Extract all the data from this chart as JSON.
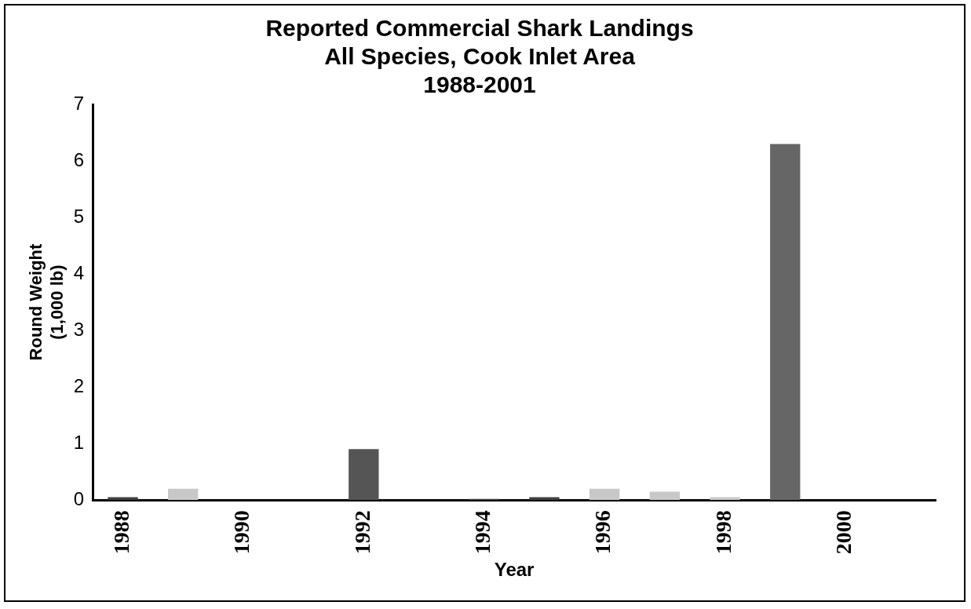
{
  "chart_data": {
    "type": "bar",
    "title": [
      "Reported Commercial Shark Landings",
      "All Species, Cook Inlet Area",
      "1988-2001"
    ],
    "xlabel": "Year",
    "ylabel": [
      "Round Weight",
      "(1,000 lb)"
    ],
    "categories": [
      "1988",
      null,
      "1990",
      null,
      "1992",
      null,
      "1994",
      null,
      "1996",
      null,
      "1998",
      null,
      "2000",
      null
    ],
    "values": [
      0.05,
      0.2,
      0,
      0,
      0.9,
      0,
      0.02,
      0.05,
      0.2,
      0.15,
      0.05,
      6.3,
      0,
      0
    ],
    "colors": [
      "#404040",
      "#c8c8c8",
      "#c8c8c8",
      "#c8c8c8",
      "#555555",
      "#c8c8c8",
      "#404040",
      "#404040",
      "#c8c8c8",
      "#c8c8c8",
      "#c8c8c8",
      "#666666",
      "#c8c8c8",
      "#c8c8c8"
    ],
    "ylim": [
      0,
      7
    ],
    "yticks": [
      0,
      1,
      2,
      3,
      4,
      5,
      6,
      7
    ],
    "grid": false,
    "legend": false
  }
}
